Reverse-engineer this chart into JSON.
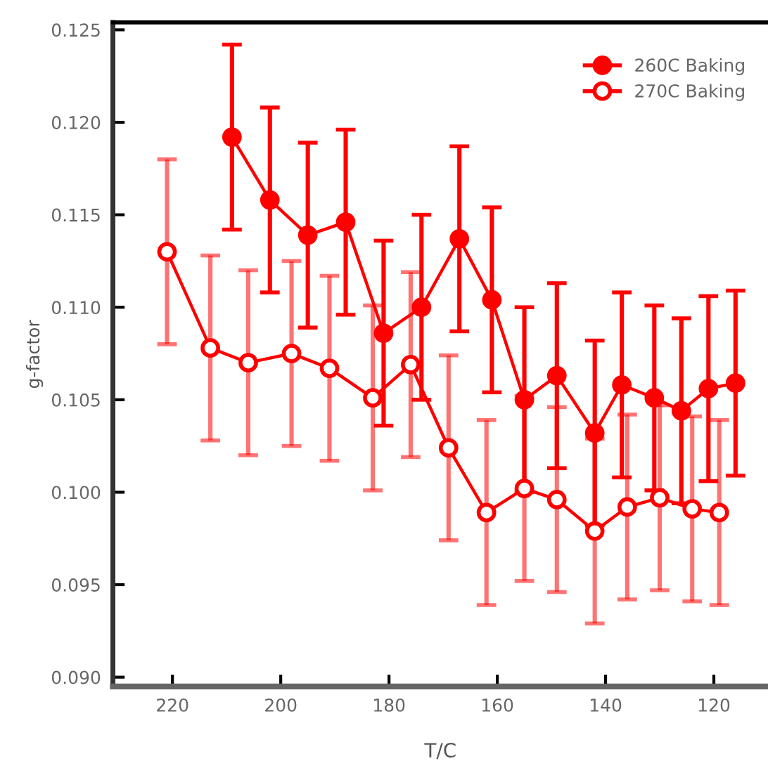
{
  "chart_data": {
    "type": "line",
    "xlabel": "T/C",
    "ylabel": "g-factor",
    "xlim": [
      231,
      110
    ],
    "xticks": [
      220,
      200,
      180,
      160,
      140,
      120
    ],
    "ylim": [
      0.0895,
      0.1254
    ],
    "yticks": [
      {
        "value": 0.09,
        "label": "0.090"
      },
      {
        "value": 0.095,
        "label": "0.095"
      },
      {
        "value": 0.1,
        "label": "0.100"
      },
      {
        "value": 0.105,
        "label": "0.105"
      },
      {
        "value": 0.11,
        "label": "0.110"
      },
      {
        "value": 0.115,
        "label": "0.115"
      },
      {
        "value": 0.12,
        "label": "0.120"
      },
      {
        "value": 0.125,
        "label": "0.125"
      }
    ],
    "grid": false,
    "legend": "top right",
    "marker": "circle",
    "line_style": "solid",
    "series": [
      {
        "name": "260C Baking",
        "color": "#ff0000",
        "x": [
          209,
          202,
          195,
          188,
          181,
          174,
          167,
          161,
          155,
          149,
          142,
          137,
          131,
          126,
          121,
          116
        ],
        "values": [
          0.1192,
          0.1158,
          0.1139,
          0.1146,
          0.1086,
          0.11,
          0.1137,
          0.1104,
          0.105,
          0.1063,
          0.1032,
          0.1058,
          0.1051,
          0.1044,
          0.1056,
          0.1059
        ],
        "errors": [
          0.005,
          0.005,
          0.005,
          0.005,
          0.005,
          0.005,
          0.005,
          0.005,
          0.005,
          0.005,
          0.005,
          0.005,
          0.005,
          0.005,
          0.005,
          0.005
        ]
      },
      {
        "name": "270C Baking",
        "color": "#ff0000",
        "x": [
          221,
          213,
          206,
          198,
          191,
          183,
          176,
          169,
          162,
          155,
          149,
          142,
          136,
          130,
          124,
          119
        ],
        "values": [
          0.113,
          0.1078,
          0.107,
          0.1075,
          0.1067,
          0.1051,
          0.1069,
          0.1024,
          0.0989,
          0.1002,
          0.0996,
          0.0979,
          0.0992,
          0.0997,
          0.0991,
          0.0989
        ],
        "errors": [
          0.005,
          0.005,
          0.005,
          0.005,
          0.005,
          0.005,
          0.005,
          0.005,
          0.005,
          0.005,
          0.005,
          0.005,
          0.005,
          0.005,
          0.005,
          0.005
        ]
      }
    ]
  }
}
